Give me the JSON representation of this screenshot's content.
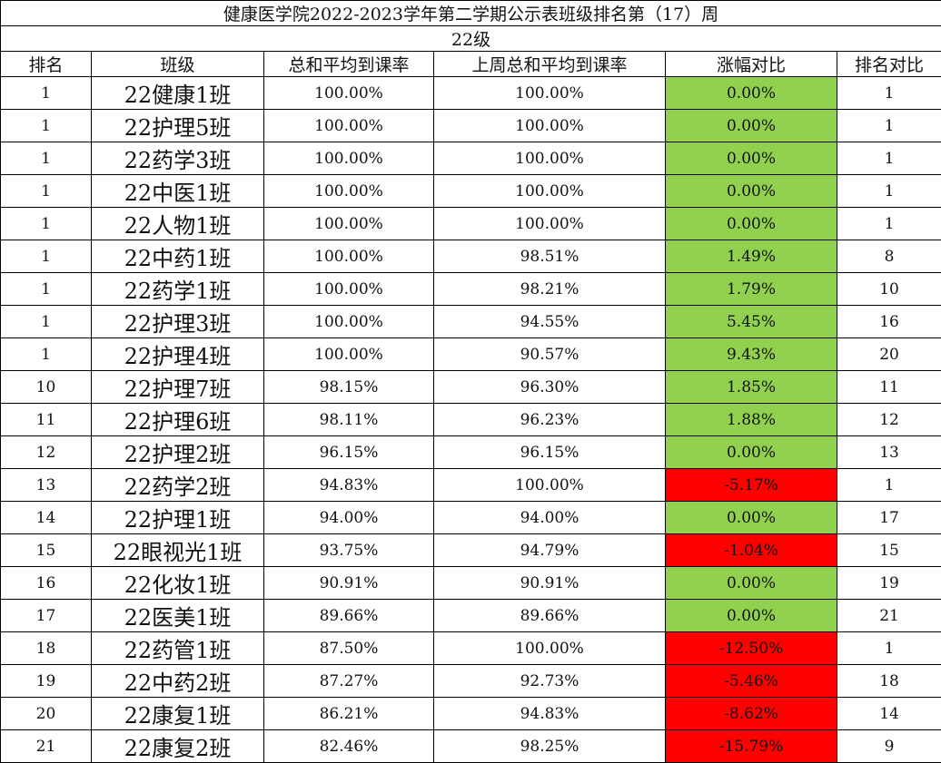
{
  "title": "健康医学院2022-2023学年第二学期公示表班级排名第（17）周",
  "grade": "22级",
  "headers": [
    "排名",
    "班级",
    "总和平均到课率",
    "上周总和平均到课率",
    "涨幅对比",
    "排名对比"
  ],
  "colors": {
    "increase_or_flat": "#92D050",
    "decrease": "#FF0000"
  },
  "rows": [
    {
      "rank": "1",
      "class": "22健康1班",
      "rate": "100.00%",
      "last_rate": "100.00%",
      "change": "0.00%",
      "last_rank": "1",
      "trend": "up"
    },
    {
      "rank": "1",
      "class": "22护理5班",
      "rate": "100.00%",
      "last_rate": "100.00%",
      "change": "0.00%",
      "last_rank": "1",
      "trend": "up"
    },
    {
      "rank": "1",
      "class": "22药学3班",
      "rate": "100.00%",
      "last_rate": "100.00%",
      "change": "0.00%",
      "last_rank": "1",
      "trend": "up"
    },
    {
      "rank": "1",
      "class": "22中医1班",
      "rate": "100.00%",
      "last_rate": "100.00%",
      "change": "0.00%",
      "last_rank": "1",
      "trend": "up"
    },
    {
      "rank": "1",
      "class": "22人物1班",
      "rate": "100.00%",
      "last_rate": "100.00%",
      "change": "0.00%",
      "last_rank": "1",
      "trend": "up"
    },
    {
      "rank": "1",
      "class": "22中药1班",
      "rate": "100.00%",
      "last_rate": "98.51%",
      "change": "1.49%",
      "last_rank": "8",
      "trend": "up"
    },
    {
      "rank": "1",
      "class": "22药学1班",
      "rate": "100.00%",
      "last_rate": "98.21%",
      "change": "1.79%",
      "last_rank": "10",
      "trend": "up"
    },
    {
      "rank": "1",
      "class": "22护理3班",
      "rate": "100.00%",
      "last_rate": "94.55%",
      "change": "5.45%",
      "last_rank": "16",
      "trend": "up"
    },
    {
      "rank": "1",
      "class": "22护理4班",
      "rate": "100.00%",
      "last_rate": "90.57%",
      "change": "9.43%",
      "last_rank": "20",
      "trend": "up"
    },
    {
      "rank": "10",
      "class": "22护理7班",
      "rate": "98.15%",
      "last_rate": "96.30%",
      "change": "1.85%",
      "last_rank": "11",
      "trend": "up"
    },
    {
      "rank": "11",
      "class": "22护理6班",
      "rate": "98.11%",
      "last_rate": "96.23%",
      "change": "1.88%",
      "last_rank": "12",
      "trend": "up"
    },
    {
      "rank": "12",
      "class": "22护理2班",
      "rate": "96.15%",
      "last_rate": "96.15%",
      "change": "0.00%",
      "last_rank": "13",
      "trend": "up"
    },
    {
      "rank": "13",
      "class": "22药学2班",
      "rate": "94.83%",
      "last_rate": "100.00%",
      "change": "-5.17%",
      "last_rank": "1",
      "trend": "down"
    },
    {
      "rank": "14",
      "class": "22护理1班",
      "rate": "94.00%",
      "last_rate": "94.00%",
      "change": "0.00%",
      "last_rank": "17",
      "trend": "up"
    },
    {
      "rank": "15",
      "class": "22眼视光1班",
      "rate": "93.75%",
      "last_rate": "94.79%",
      "change": "-1.04%",
      "last_rank": "15",
      "trend": "down"
    },
    {
      "rank": "16",
      "class": "22化妆1班",
      "rate": "90.91%",
      "last_rate": "90.91%",
      "change": "0.00%",
      "last_rank": "19",
      "trend": "up"
    },
    {
      "rank": "17",
      "class": "22医美1班",
      "rate": "89.66%",
      "last_rate": "89.66%",
      "change": "0.00%",
      "last_rank": "21",
      "trend": "up"
    },
    {
      "rank": "18",
      "class": "22药管1班",
      "rate": "87.50%",
      "last_rate": "100.00%",
      "change": "-12.50%",
      "last_rank": "1",
      "trend": "down"
    },
    {
      "rank": "19",
      "class": "22中药2班",
      "rate": "87.27%",
      "last_rate": "92.73%",
      "change": "-5.46%",
      "last_rank": "18",
      "trend": "down"
    },
    {
      "rank": "20",
      "class": "22康复1班",
      "rate": "86.21%",
      "last_rate": "94.83%",
      "change": "-8.62%",
      "last_rank": "14",
      "trend": "down"
    },
    {
      "rank": "21",
      "class": "22康复2班",
      "rate": "82.46%",
      "last_rate": "98.25%",
      "change": "-15.79%",
      "last_rank": "9",
      "trend": "down"
    }
  ]
}
